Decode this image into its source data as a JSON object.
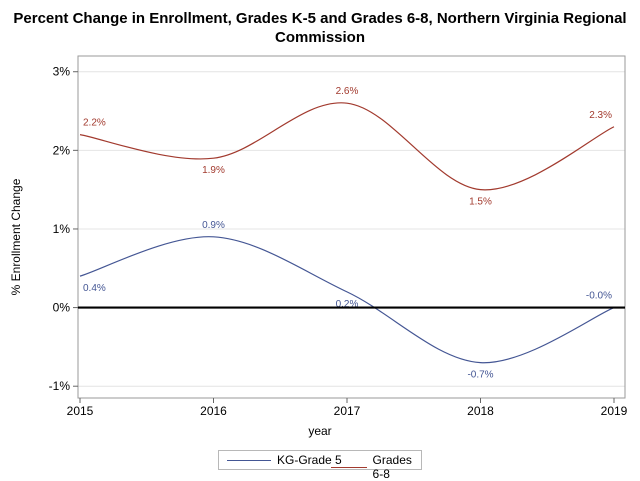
{
  "chart_data": {
    "type": "line",
    "title": "Percent Change in Enrollment, Grades K-5 and Grades 6-8, Northern Virginia Regional Commission",
    "xlabel": "year",
    "ylabel": "% Enrollment Change",
    "x": [
      2015,
      2016,
      2017,
      2018,
      2019
    ],
    "xlim": [
      2015,
      2019
    ],
    "ylim": [
      -1.15,
      3.2
    ],
    "yticks": [
      -1,
      0,
      1,
      2,
      3
    ],
    "ytick_labels": [
      "-1%",
      "0%",
      "1%",
      "2%",
      "3%"
    ],
    "grid": "horizontal",
    "reference_line": 0,
    "legend_position": "bottom",
    "series": [
      {
        "name": "KG-Grade 5",
        "color": "#445694",
        "values": [
          0.4,
          0.9,
          0.2,
          -0.7,
          -0.0
        ],
        "labels": [
          "0.4%",
          "0.9%",
          "0.2%",
          "-0.7%",
          "-0.0%"
        ]
      },
      {
        "name": "Grades 6-8",
        "color": "#A23A2E",
        "values": [
          2.2,
          1.9,
          2.6,
          1.5,
          2.3
        ],
        "labels": [
          "2.2%",
          "1.9%",
          "2.6%",
          "1.5%",
          "2.3%"
        ]
      }
    ]
  }
}
